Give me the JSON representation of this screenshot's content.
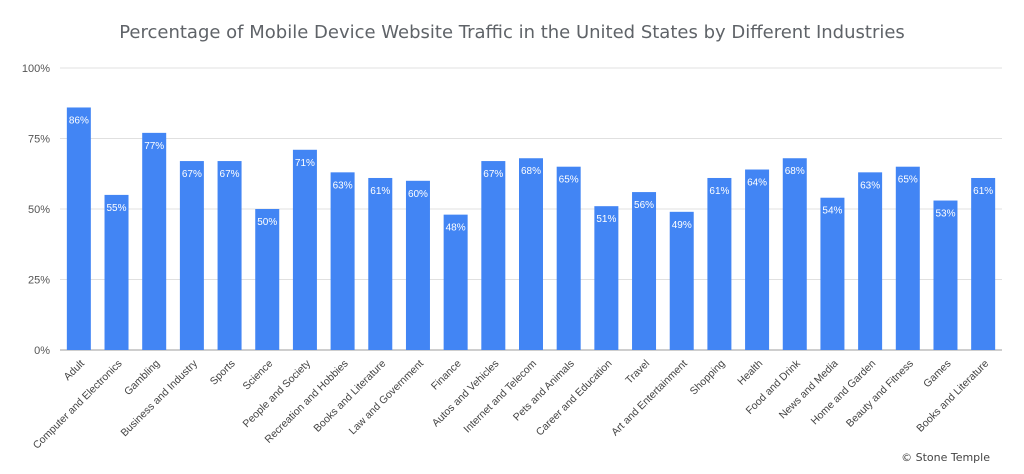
{
  "chart_data": {
    "type": "bar",
    "title": "Percentage of Mobile Device Website Traffic in the United States by Different Industries",
    "xlabel": "",
    "ylabel": "",
    "ylim": [
      0,
      100
    ],
    "yticks": [
      "0%",
      "25%",
      "50%",
      "75%",
      "100%"
    ],
    "ytick_values": [
      0,
      25,
      50,
      75,
      100
    ],
    "grid": true,
    "bar_color": "#4285f4",
    "categories": [
      "Adult",
      "Computer and Electronics",
      "Gambling",
      "Business and Industry",
      "Sports",
      "Science",
      "People and Society",
      "Recreation and Hobbies",
      "Books and Literature",
      "Law and Government",
      "Finance",
      "Autos and Vehicles",
      "Internet and Telecom",
      "Pets and Animals",
      "Career and Education",
      "Travel",
      "Art and Entertainment",
      "Shopping",
      "Health",
      "Food and Drink",
      "News and Media",
      "Home and Garden",
      "Beauty and Fitness",
      "Games",
      "Books and Literature"
    ],
    "values": [
      86,
      55,
      77,
      67,
      67,
      50,
      71,
      63,
      61,
      60,
      48,
      67,
      68,
      65,
      51,
      56,
      49,
      61,
      64,
      68,
      54,
      63,
      65,
      53,
      61
    ],
    "data_labels": [
      "86%",
      "55%",
      "77%",
      "67%",
      "67%",
      "50%",
      "71%",
      "63%",
      "61%",
      "60%",
      "48%",
      "67%",
      "68%",
      "65%",
      "51%",
      "56%",
      "49%",
      "61%",
      "64%",
      "68%",
      "54%",
      "63%",
      "65%",
      "53%",
      "61%"
    ]
  },
  "credit": "© Stone Temple"
}
